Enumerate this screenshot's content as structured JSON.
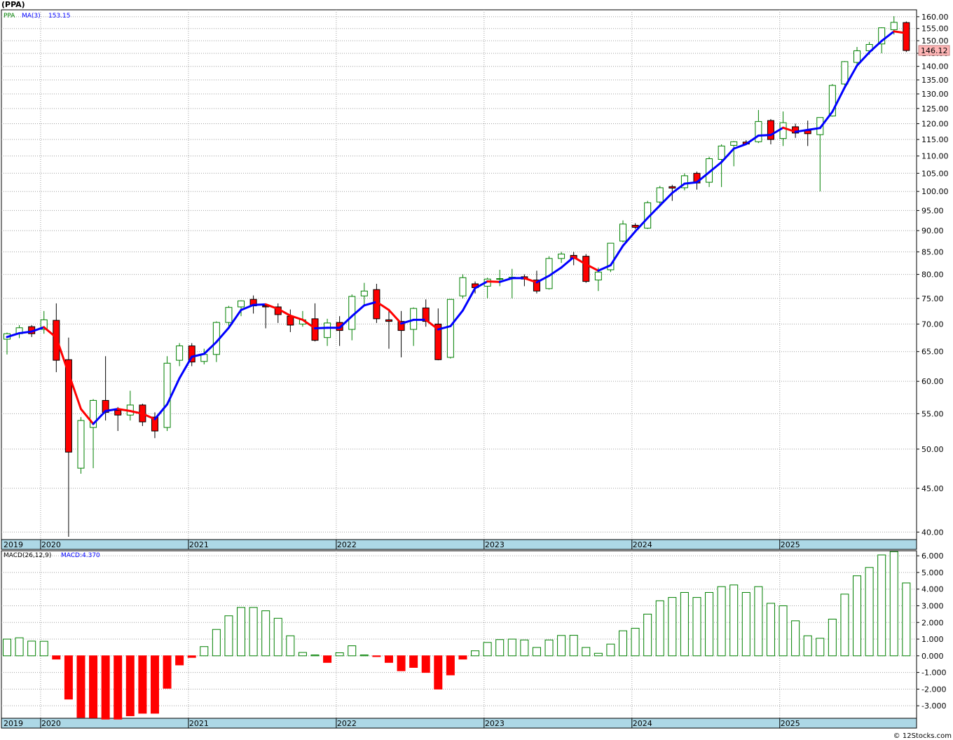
{
  "title": "(PPA)",
  "credit": "© 12Stocks.com",
  "colors": {
    "up": "#008000",
    "down": "#ff0000",
    "ma_up": "#0000ff",
    "ma_down": "#ff0000",
    "band": "#add8e6",
    "price_tag": "#ffb6b6",
    "grid": "#a0a0a0"
  },
  "chart_data": [
    {
      "type": "candlestick",
      "legend": [
        {
          "label": "PPA",
          "color": "#008000"
        },
        {
          "label": "MA(3)",
          "color": "#0000ff"
        },
        {
          "label": "153.15",
          "color": "#0000ff"
        }
      ],
      "y_scale": "log",
      "ylim": [
        39.2,
        163
      ],
      "y_ticks": [
        "160.00",
        "155.00",
        "150.00",
        "145.00",
        "140.00",
        "135.00",
        "130.00",
        "125.00",
        "120.00",
        "115.00",
        "110.00",
        "105.00",
        "100.00",
        "95.00",
        "90.00",
        "85.00",
        "80.00",
        "75.00",
        "70.00",
        "65.00",
        "60.00",
        "55.00",
        "50.00",
        "45.00",
        "40.00"
      ],
      "x_labels": [
        "2019",
        "2020",
        "2021",
        "2022",
        "2023",
        "2024",
        "2025"
      ],
      "last_price_label": "146.12",
      "grid": true,
      "candles": [
        {
          "o": 67.2,
          "h": 68.4,
          "l": 64.5,
          "c": 68.2
        },
        {
          "o": 68.2,
          "h": 69.8,
          "l": 67.4,
          "c": 69.3
        },
        {
          "o": 69.5,
          "h": 69.8,
          "l": 67.6,
          "c": 68.2
        },
        {
          "o": 69.0,
          "h": 72.5,
          "l": 68.2,
          "c": 70.8
        },
        {
          "o": 70.7,
          "h": 74.0,
          "l": 61.5,
          "c": 63.5
        },
        {
          "o": 63.6,
          "h": 67.5,
          "l": 39.5,
          "c": 49.6
        },
        {
          "o": 47.5,
          "h": 54.5,
          "l": 46.8,
          "c": 54.0
        },
        {
          "o": 53.0,
          "h": 57.2,
          "l": 47.5,
          "c": 57.0
        },
        {
          "o": 57.0,
          "h": 64.2,
          "l": 54.0,
          "c": 55.2
        },
        {
          "o": 55.5,
          "h": 56.0,
          "l": 52.5,
          "c": 54.8
        },
        {
          "o": 54.8,
          "h": 58.5,
          "l": 54.0,
          "c": 56.3
        },
        {
          "o": 56.3,
          "h": 56.5,
          "l": 53.2,
          "c": 53.8
        },
        {
          "o": 54.5,
          "h": 55.2,
          "l": 51.5,
          "c": 52.5
        },
        {
          "o": 53.0,
          "h": 64.2,
          "l": 52.5,
          "c": 63.0
        },
        {
          "o": 63.5,
          "h": 66.5,
          "l": 62.5,
          "c": 66.0
        },
        {
          "o": 66.0,
          "h": 66.5,
          "l": 62.5,
          "c": 63.2
        },
        {
          "o": 63.3,
          "h": 65.5,
          "l": 62.8,
          "c": 64.5
        },
        {
          "o": 64.5,
          "h": 70.5,
          "l": 63.2,
          "c": 70.3
        },
        {
          "o": 70.3,
          "h": 73.5,
          "l": 69.5,
          "c": 73.2
        },
        {
          "o": 73.3,
          "h": 74.6,
          "l": 71.5,
          "c": 74.5
        },
        {
          "o": 74.8,
          "h": 75.6,
          "l": 72.0,
          "c": 73.5
        },
        {
          "o": 73.5,
          "h": 74.0,
          "l": 69.2,
          "c": 73.3
        },
        {
          "o": 73.3,
          "h": 74.0,
          "l": 70.2,
          "c": 71.8
        },
        {
          "o": 71.5,
          "h": 72.8,
          "l": 68.5,
          "c": 69.8
        },
        {
          "o": 70.0,
          "h": 72.5,
          "l": 69.5,
          "c": 70.8
        },
        {
          "o": 71.0,
          "h": 74.0,
          "l": 66.8,
          "c": 67.0
        },
        {
          "o": 67.5,
          "h": 71.0,
          "l": 66.0,
          "c": 70.2
        },
        {
          "o": 70.3,
          "h": 71.5,
          "l": 66.0,
          "c": 68.8
        },
        {
          "o": 69.0,
          "h": 75.8,
          "l": 67.0,
          "c": 75.4
        },
        {
          "o": 75.5,
          "h": 78.2,
          "l": 73.5,
          "c": 76.5
        },
        {
          "o": 76.8,
          "h": 78.0,
          "l": 70.2,
          "c": 71.0
        },
        {
          "o": 70.8,
          "h": 72.5,
          "l": 65.5,
          "c": 70.5
        },
        {
          "o": 70.5,
          "h": 72.5,
          "l": 64.0,
          "c": 68.8
        },
        {
          "o": 69.0,
          "h": 73.2,
          "l": 66.0,
          "c": 73.0
        },
        {
          "o": 73.1,
          "h": 74.8,
          "l": 69.5,
          "c": 70.5
        },
        {
          "o": 70.0,
          "h": 73.0,
          "l": 63.5,
          "c": 63.6
        },
        {
          "o": 64.0,
          "h": 74.9,
          "l": 63.8,
          "c": 74.8
        },
        {
          "o": 75.5,
          "h": 80.0,
          "l": 75.0,
          "c": 79.3
        },
        {
          "o": 78.0,
          "h": 78.5,
          "l": 76.0,
          "c": 77.2
        },
        {
          "o": 77.5,
          "h": 79.3,
          "l": 75.0,
          "c": 79.0
        },
        {
          "o": 79.0,
          "h": 81.0,
          "l": 77.5,
          "c": 79.1
        },
        {
          "o": 79.2,
          "h": 81.2,
          "l": 75.0,
          "c": 79.4
        },
        {
          "o": 79.5,
          "h": 80.0,
          "l": 77.5,
          "c": 79.0
        },
        {
          "o": 78.8,
          "h": 80.8,
          "l": 76.0,
          "c": 76.5
        },
        {
          "o": 77.0,
          "h": 84.0,
          "l": 76.8,
          "c": 83.5
        },
        {
          "o": 83.5,
          "h": 85.0,
          "l": 82.5,
          "c": 84.5
        },
        {
          "o": 84.2,
          "h": 85.0,
          "l": 82.0,
          "c": 83.5
        },
        {
          "o": 84.0,
          "h": 84.5,
          "l": 78.2,
          "c": 78.5
        },
        {
          "o": 78.8,
          "h": 81.5,
          "l": 76.5,
          "c": 80.5
        },
        {
          "o": 81.0,
          "h": 87.0,
          "l": 80.5,
          "c": 87.0
        },
        {
          "o": 87.5,
          "h": 92.5,
          "l": 87.2,
          "c": 91.6
        },
        {
          "o": 91.3,
          "h": 91.8,
          "l": 90.4,
          "c": 90.8
        },
        {
          "o": 90.6,
          "h": 97.5,
          "l": 90.4,
          "c": 97.0
        },
        {
          "o": 97.2,
          "h": 101.5,
          "l": 96.5,
          "c": 101.0
        },
        {
          "o": 101.3,
          "h": 101.8,
          "l": 97.5,
          "c": 100.9
        },
        {
          "o": 101.0,
          "h": 105.0,
          "l": 100.3,
          "c": 104.3
        },
        {
          "o": 105.0,
          "h": 105.5,
          "l": 100.5,
          "c": 102.3
        },
        {
          "o": 102.5,
          "h": 109.8,
          "l": 101.2,
          "c": 109.2
        },
        {
          "o": 109.0,
          "h": 113.5,
          "l": 101.2,
          "c": 113.0
        },
        {
          "o": 113.2,
          "h": 114.5,
          "l": 107.0,
          "c": 114.3
        },
        {
          "o": 114.2,
          "h": 114.8,
          "l": 113.4,
          "c": 113.6
        },
        {
          "o": 114.3,
          "h": 124.5,
          "l": 113.9,
          "c": 120.7
        },
        {
          "o": 121.0,
          "h": 121.5,
          "l": 113.5,
          "c": 115.0
        },
        {
          "o": 115.3,
          "h": 124.0,
          "l": 113.0,
          "c": 120.3
        },
        {
          "o": 119.0,
          "h": 120.0,
          "l": 115.5,
          "c": 117.0
        },
        {
          "o": 117.8,
          "h": 121.0,
          "l": 113.0,
          "c": 116.8
        },
        {
          "o": 116.5,
          "h": 122.0,
          "l": 100.0,
          "c": 122.0
        },
        {
          "o": 122.5,
          "h": 133.5,
          "l": 122.3,
          "c": 133.0
        },
        {
          "o": 133.5,
          "h": 142.0,
          "l": 133.0,
          "c": 141.8
        },
        {
          "o": 141.5,
          "h": 147.5,
          "l": 140.0,
          "c": 146.0
        },
        {
          "o": 146.0,
          "h": 149.5,
          "l": 144.5,
          "c": 148.5
        },
        {
          "o": 148.7,
          "h": 155.5,
          "l": 145.0,
          "c": 155.3
        },
        {
          "o": 154.5,
          "h": 160.2,
          "l": 152.5,
          "c": 157.6
        },
        {
          "o": 157.5,
          "h": 158.0,
          "l": 145.5,
          "c": 146.1
        }
      ],
      "ma3": [
        67.6,
        68.3,
        68.6,
        69.4,
        67.5,
        61.3,
        55.7,
        53.5,
        55.4,
        55.7,
        55.4,
        55.0,
        54.2,
        56.4,
        60.5,
        64.1,
        64.6,
        66.7,
        69.3,
        72.7,
        73.7,
        73.8,
        72.9,
        71.6,
        70.8,
        69.2,
        69.3,
        69.3,
        71.5,
        73.6,
        74.3,
        72.7,
        70.1,
        70.8,
        70.8,
        69.0,
        69.6,
        72.6,
        77.1,
        78.5,
        78.4,
        79.2,
        79.2,
        78.3,
        79.7,
        81.5,
        83.8,
        82.2,
        80.8,
        82.0,
        86.4,
        89.8,
        93.1,
        96.3,
        99.6,
        102.1,
        102.5,
        105.3,
        108.2,
        112.2,
        113.6,
        116.2,
        116.4,
        118.7,
        117.4,
        118.0,
        118.6,
        123.9,
        132.3,
        140.3,
        145.4,
        149.9,
        153.8,
        153.1
      ]
    },
    {
      "type": "bar",
      "legend": [
        {
          "label": "MACD(26,12,9)",
          "color": "#000000"
        },
        {
          "label": "MACD:4.370",
          "color": "#0000ff"
        }
      ],
      "ylim": [
        -3.75,
        6.3
      ],
      "y_ticks": [
        6,
        5,
        4,
        3,
        2,
        1,
        0,
        -1,
        -2,
        -3
      ],
      "y_tick_labels": [
        "6.000",
        "5.000",
        "4.000",
        "3.000",
        "2.000",
        "1.000",
        "0.000",
        "-1.000",
        "-2.000",
        "-3.000"
      ],
      "x_labels": [
        "2019",
        "2020",
        "2021",
        "2022",
        "2023",
        "2024",
        "2025"
      ],
      "grid": true,
      "values": [
        1.0,
        1.08,
        0.88,
        0.87,
        -0.2,
        -2.6,
        -3.7,
        -3.72,
        -3.8,
        -3.8,
        -3.6,
        -3.45,
        -3.45,
        -1.95,
        -0.55,
        -0.1,
        0.55,
        1.58,
        2.4,
        2.9,
        2.9,
        2.7,
        2.25,
        1.2,
        0.2,
        0.05,
        -0.4,
        0.18,
        0.6,
        0.05,
        -0.05,
        -0.4,
        -0.9,
        -0.7,
        -1.0,
        -2.0,
        -1.15,
        -0.2,
        0.3,
        0.8,
        0.97,
        1.0,
        0.95,
        0.5,
        0.95,
        1.22,
        1.23,
        0.5,
        0.15,
        0.7,
        1.5,
        1.65,
        2.5,
        3.3,
        3.5,
        3.8,
        3.5,
        3.8,
        4.15,
        4.25,
        3.8,
        4.15,
        3.15,
        3.0,
        2.1,
        1.2,
        1.05,
        2.2,
        3.7,
        4.8,
        5.3,
        6.05,
        6.25,
        4.37
      ]
    }
  ]
}
